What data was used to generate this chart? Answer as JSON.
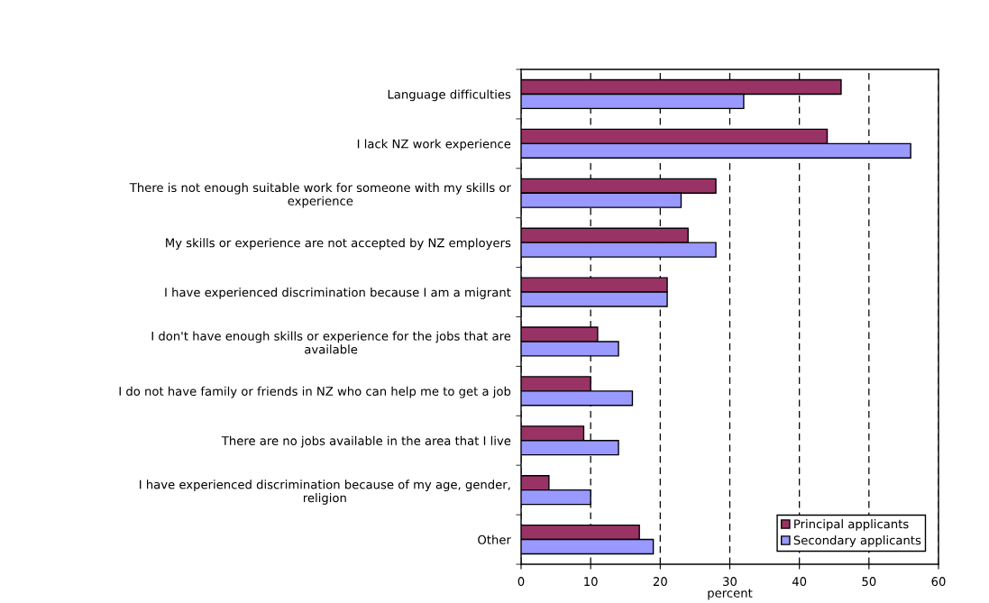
{
  "chart_data": {
    "type": "bar",
    "orientation": "horizontal",
    "categories": [
      "Language difficulties",
      "I lack NZ work experience",
      "There is not enough suitable work for someone with my skills or\nexperience",
      "My skills or experience are not accepted by NZ employers",
      "I have experienced discrimination because I am a migrant",
      "I don't have enough skills or experience for the jobs that are\navailable",
      "I do not have family or friends in NZ who can help me to get a job",
      "There are no jobs available in the area that I live",
      "I have experienced discrimination because of my age, gender,\nreligion",
      "Other"
    ],
    "series": [
      {
        "name": "Principal applicants",
        "color": "#993366",
        "values": [
          46,
          44,
          28,
          24,
          21,
          11,
          10,
          9,
          4,
          17
        ]
      },
      {
        "name": "Secondary applicants",
        "color": "#9999ff",
        "values": [
          32,
          56,
          23,
          28,
          21,
          14,
          16,
          14,
          10,
          19
        ]
      }
    ],
    "xlabel": "percent",
    "xlim": [
      0,
      60
    ],
    "xticks": [
      0,
      10,
      20,
      30,
      40,
      50,
      60
    ],
    "grid": "x",
    "legend": "bottom right"
  }
}
